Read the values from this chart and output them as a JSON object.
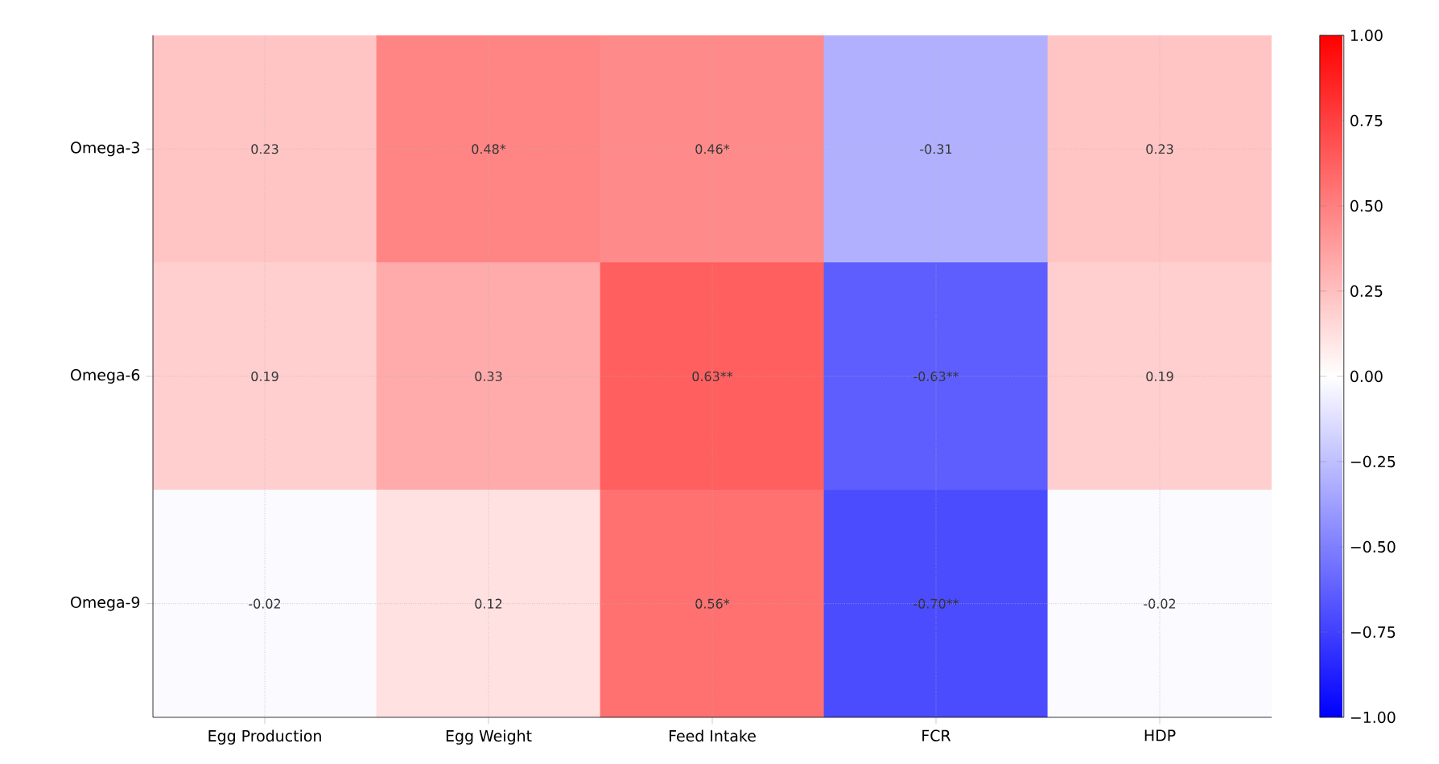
{
  "chart_data": {
    "type": "heatmap",
    "categories": [
      "Egg Production",
      "Egg Weight",
      "Feed Intake",
      "FCR",
      "HDP"
    ],
    "y_categories": [
      "Omega-3",
      "Omega-6",
      "Omega-9"
    ],
    "cells": [
      [
        0.23,
        0.48,
        0.46,
        -0.31,
        0.23
      ],
      [
        0.19,
        0.33,
        0.63,
        -0.63,
        0.19
      ],
      [
        -0.02,
        0.12,
        0.56,
        -0.7,
        -0.02
      ]
    ],
    "cell_labels": [
      [
        "0.23",
        "0.48*",
        "0.46*",
        "-0.31",
        "0.23"
      ],
      [
        "0.19",
        "0.33",
        "0.63**",
        "-0.63**",
        "0.19"
      ],
      [
        "-0.02",
        "0.12",
        "0.56*",
        "-0.70**",
        "-0.02"
      ]
    ],
    "clim": [
      -1,
      1
    ],
    "cticks": [
      {
        "value": -1,
        "label": "−1.00"
      },
      {
        "value": -0.75,
        "label": "−0.75"
      },
      {
        "value": -0.5,
        "label": "−0.50"
      },
      {
        "value": -0.25,
        "label": "−0.25"
      },
      {
        "value": 0,
        "label": "0.00"
      },
      {
        "value": 0.25,
        "label": "0.25"
      },
      {
        "value": 0.5,
        "label": "0.50"
      },
      {
        "value": 0.75,
        "label": "0.75"
      },
      {
        "value": 1,
        "label": "1.00"
      }
    ],
    "grid": true
  }
}
